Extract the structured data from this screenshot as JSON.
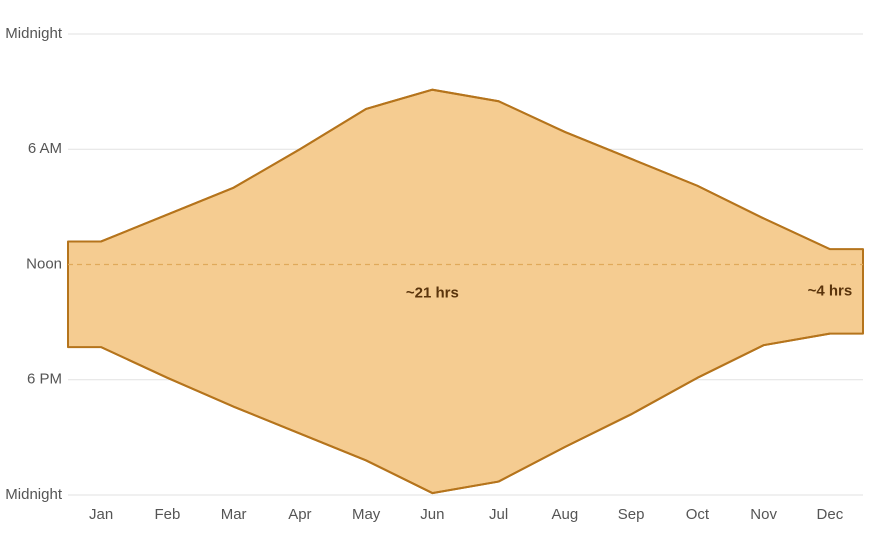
{
  "chart_data": {
    "type": "range_area",
    "categories": [
      "Jan",
      "Feb",
      "Mar",
      "Apr",
      "May",
      "Jun",
      "Jul",
      "Aug",
      "Sep",
      "Oct",
      "Nov",
      "Dec"
    ],
    "low": [
      10.8,
      9.4,
      8.0,
      6.0,
      3.9,
      2.9,
      3.5,
      5.1,
      6.5,
      7.9,
      9.6,
      11.2
    ],
    "high": [
      16.3,
      17.9,
      19.4,
      20.8,
      22.2,
      23.9,
      23.3,
      21.5,
      19.8,
      17.9,
      16.2,
      15.6
    ],
    "color": "#f5cc91",
    "line_color": "#b5741c",
    "ylim": [
      0,
      24
    ],
    "y_inverted": true,
    "yticks": [
      {
        "value": 0,
        "label": "Midnight"
      },
      {
        "value": 6,
        "label": "6 AM"
      },
      {
        "value": 12,
        "label": "Noon"
      },
      {
        "value": 18,
        "label": "6 PM"
      },
      {
        "value": 24,
        "label": "Midnight"
      }
    ],
    "grid": true,
    "reference_y": 12,
    "annotations": [
      {
        "text": "~21 hrs",
        "category": "Jun",
        "y": 13.5
      },
      {
        "text": "~4 hrs",
        "category": "Dec",
        "y": 13.4
      }
    ]
  }
}
